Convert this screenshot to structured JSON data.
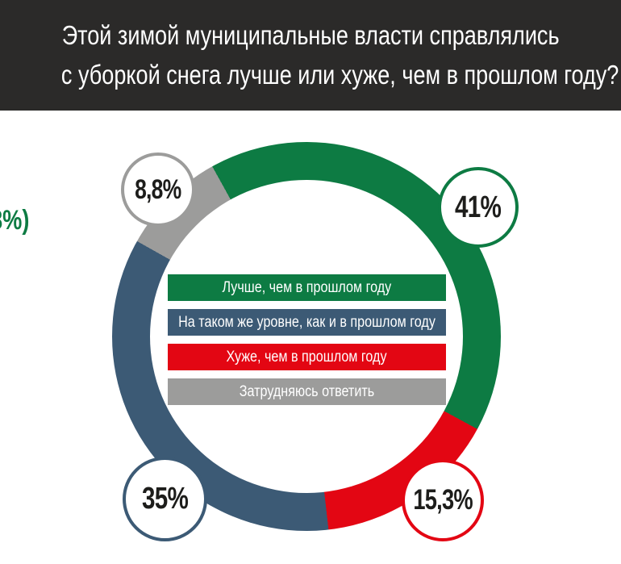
{
  "header": {
    "title_line1": "Этой зимой муниципальные власти справлялись",
    "title_line2": "с уборкой снега лучше или хуже, чем в прошлом году?"
  },
  "colors": {
    "header_bg": "#2b2a29",
    "title_text": "#ffffff",
    "green": "#0d7b43",
    "blue": "#3c5a75",
    "red": "#e30613",
    "gray": "#9c9c9b",
    "callout_text": "#1d1d1b",
    "page_bg": "#ffffff"
  },
  "chart_data": {
    "type": "pie",
    "donut": true,
    "title": "Этой зимой муниципальные власти справлялись с уборкой снега лучше или хуже, чем в прошлом году?",
    "units": "%",
    "legend_position": "center",
    "start_angle_deg": -29,
    "segments": [
      {
        "label": "Лучше, чем в прошлом году",
        "value": 41,
        "value_label": "41%",
        "color": "#0d7b43"
      },
      {
        "label": "Хуже, чем в прошлом году",
        "value": 15.3,
        "value_label": "15,3%",
        "color": "#e30613"
      },
      {
        "label": "На таком же уровне, как и в прошлом году",
        "value": 35,
        "value_label": "35%",
        "color": "#3c5a75"
      },
      {
        "label": "Затрудняюсь ответить",
        "value": 8.8,
        "value_label": "8,8%",
        "color": "#9c9c9b"
      }
    ],
    "clipped_left_annotation": "8%)"
  },
  "legend": {
    "items": [
      {
        "label": "Лучше, чем в прошлом году",
        "color": "#0d7b43"
      },
      {
        "label": "На таком же уровне, как и в прошлом году",
        "color": "#3c5a75"
      },
      {
        "label": "Хуже, чем в прошлом году",
        "color": "#e30613"
      },
      {
        "label": "Затрудняюсь ответить",
        "color": "#9c9c9b"
      }
    ]
  },
  "callouts": [
    {
      "id": "better",
      "value_label": "41%",
      "color": "#0d7b43"
    },
    {
      "id": "undecided",
      "value_label": "8,8%",
      "color": "#9c9c9b"
    },
    {
      "id": "same",
      "value_label": "35%",
      "color": "#3c5a75"
    },
    {
      "id": "worse",
      "value_label": "15,3%",
      "color": "#e30613"
    }
  ],
  "annotation": {
    "clipped_text": "8%)",
    "color": "#0d7b43"
  }
}
